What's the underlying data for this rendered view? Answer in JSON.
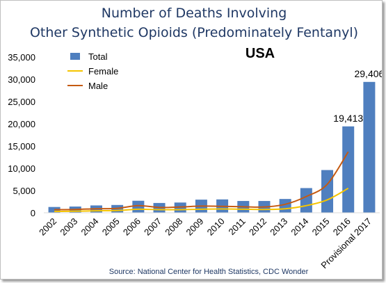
{
  "chart_data": {
    "type": "bar",
    "title_lines": [
      "Number of Deaths Involving",
      "Other Synthetic Opioids (Predominately Fentanyl)"
    ],
    "region_label": "USA",
    "source": "Source: National Center for Health Statistics, CDC Wonder",
    "categories": [
      "2002",
      "2003",
      "2004",
      "2005",
      "2006",
      "2007",
      "2008",
      "2009",
      "2010",
      "2011",
      "2012",
      "2013",
      "2014",
      "2015",
      "2016",
      "Provisional 2017"
    ],
    "ylim": [
      0,
      35000
    ],
    "yticks": [
      0,
      5000,
      10000,
      15000,
      20000,
      25000,
      30000,
      35000
    ],
    "ytick_labels": [
      "0",
      "5,000",
      "10,000",
      "15,000",
      "20,000",
      "25,000",
      "30,000",
      "35,000"
    ],
    "legend_position": "top-left",
    "series": [
      {
        "name": "Total",
        "kind": "bar",
        "color": "#4f7fbf",
        "values": [
          1300,
          1400,
          1650,
          1750,
          2700,
          2200,
          2300,
          2950,
          3000,
          2650,
          2650,
          3100,
          5550,
          9600,
          19413,
          29406
        ]
      },
      {
        "name": "Female",
        "kind": "line",
        "color": "#f5c400",
        "values": [
          300,
          350,
          450,
          500,
          800,
          700,
          700,
          800,
          850,
          800,
          750,
          900,
          1600,
          2900,
          5500,
          null
        ]
      },
      {
        "name": "Male",
        "kind": "line",
        "color": "#c55a11",
        "values": [
          700,
          750,
          900,
          1000,
          1600,
          1200,
          1300,
          1500,
          1450,
          1350,
          1300,
          1900,
          3650,
          6400,
          13700,
          null
        ]
      }
    ],
    "data_labels": [
      {
        "category": "2016",
        "value": 19413,
        "text": "19,413"
      },
      {
        "category": "Provisional 2017",
        "value": 29406,
        "text": "29,406"
      }
    ]
  }
}
